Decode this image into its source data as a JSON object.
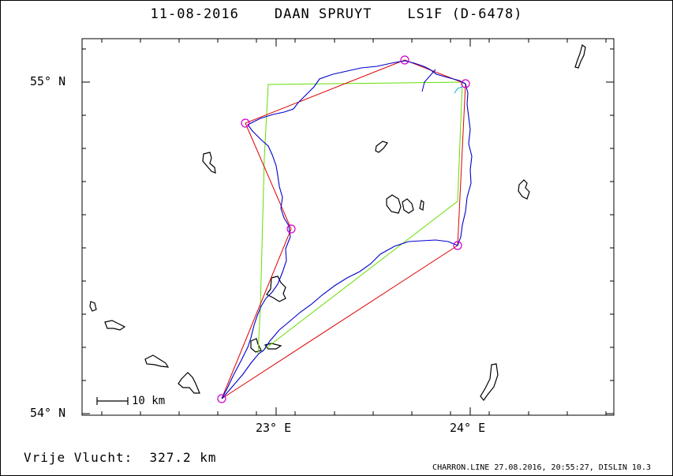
{
  "header": {
    "date": "11-08-2016",
    "pilot": "DAAN SPRUYT",
    "glider": "LS1F (D-6478)"
  },
  "axes": {
    "lat_labels": [
      "55° N",
      "54° N"
    ],
    "lon_labels": [
      "23° E",
      "24° E"
    ]
  },
  "scale_bar": {
    "label": "10 km"
  },
  "footer": {
    "distance_label": "Vrije Vlucht:  327.2 km",
    "software": "CHARRON.LINE 27.08.2016, 20:55:27, DISLIN 10.3"
  },
  "colors": {
    "track": "#0000cc",
    "task": "#dd0000",
    "alt_route": "#66dd00",
    "turnpoint": "#cc00cc",
    "lakes": "#000000"
  }
}
